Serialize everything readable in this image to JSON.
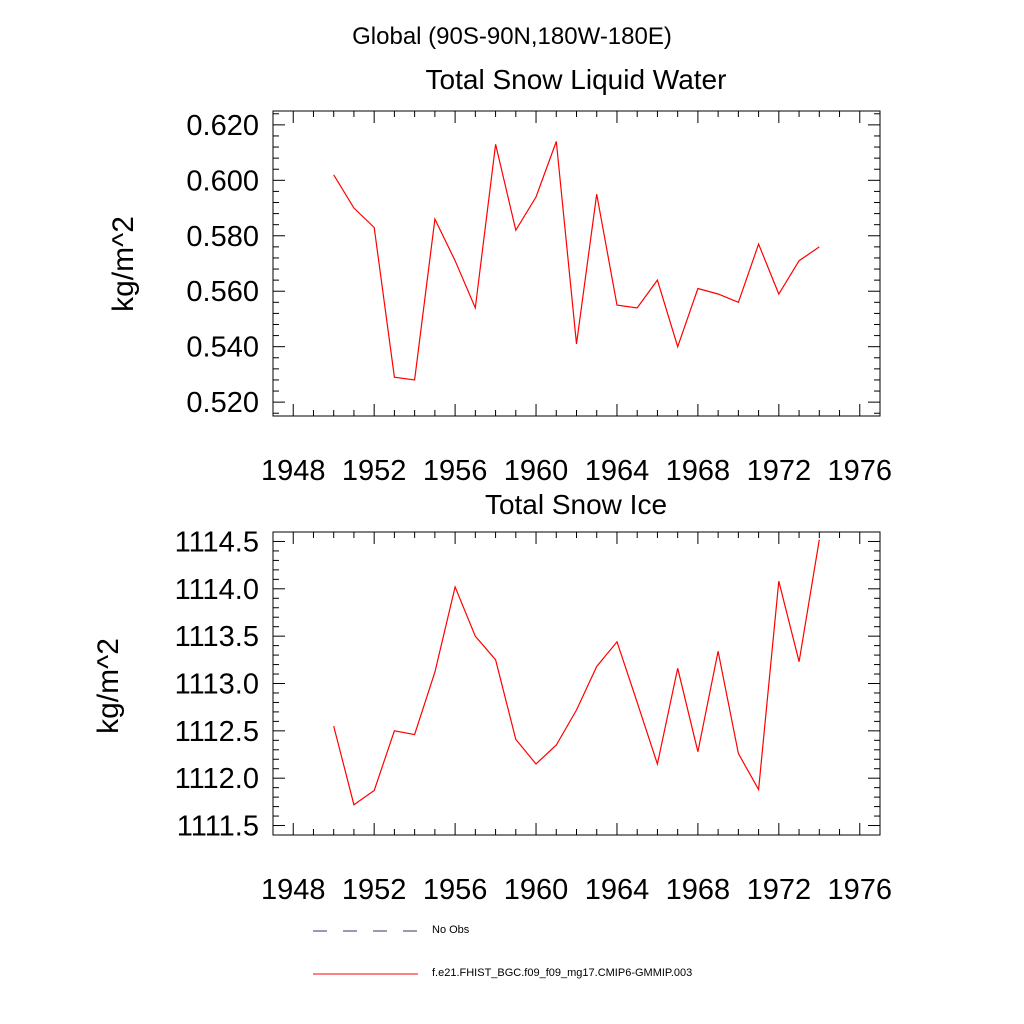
{
  "figure": {
    "supertitle": "Global (90S-90N,180W-180E)"
  },
  "colors": {
    "series": "#ff0000",
    "obs": "#333366",
    "axis": "#000000"
  },
  "legend": {
    "placement": "bottom-center",
    "items": [
      {
        "label": "No Obs",
        "style": "dashed",
        "color": "#333366"
      },
      {
        "label": "f.e21.FHIST_BGC.f09_f09_mg17.CMIP6-GMMIP.003",
        "style": "solid",
        "color": "#ff0000"
      }
    ]
  },
  "chart_data": [
    {
      "type": "line",
      "title": "Total Snow Liquid Water",
      "xlabel": "",
      "ylabel": "kg/m^2",
      "xlim": [
        1947,
        1977
      ],
      "ylim": [
        0.515,
        0.625
      ],
      "grid": false,
      "x_ticks": [
        1948,
        1952,
        1956,
        1960,
        1964,
        1968,
        1972,
        1976
      ],
      "x_tick_labels": [
        "1948",
        "1952",
        "1956",
        "1960",
        "1964",
        "1968",
        "1972",
        "1976"
      ],
      "y_ticks": [
        0.52,
        0.54,
        0.56,
        0.58,
        0.6,
        0.62
      ],
      "y_tick_labels": [
        "0.520",
        "0.540",
        "0.560",
        "0.580",
        "0.600",
        "0.620"
      ],
      "y_minor_step": 0.004,
      "x_minor_step": 1,
      "series": [
        {
          "name": "f.e21.FHIST_BGC.f09_f09_mg17.CMIP6-GMMIP.003",
          "color": "#ff0000",
          "x": [
            1950,
            1951,
            1952,
            1953,
            1954,
            1955,
            1956,
            1957,
            1958,
            1959,
            1960,
            1961,
            1962,
            1963,
            1964,
            1965,
            1966,
            1967,
            1968,
            1969,
            1970,
            1971,
            1972,
            1973,
            1974
          ],
          "y": [
            0.602,
            0.59,
            0.583,
            0.529,
            0.528,
            0.586,
            0.571,
            0.554,
            0.613,
            0.582,
            0.594,
            0.614,
            0.541,
            0.595,
            0.555,
            0.554,
            0.564,
            0.54,
            0.561,
            0.559,
            0.556,
            0.577,
            0.559,
            0.571,
            0.576
          ]
        }
      ]
    },
    {
      "type": "line",
      "title": "Total Snow Ice",
      "xlabel": "",
      "ylabel": "kg/m^2",
      "xlim": [
        1947,
        1977
      ],
      "ylim": [
        1111.4,
        1114.6
      ],
      "grid": false,
      "x_ticks": [
        1948,
        1952,
        1956,
        1960,
        1964,
        1968,
        1972,
        1976
      ],
      "x_tick_labels": [
        "1948",
        "1952",
        "1956",
        "1960",
        "1964",
        "1968",
        "1972",
        "1976"
      ],
      "y_ticks": [
        1111.5,
        1112.0,
        1112.5,
        1113.0,
        1113.5,
        1114.0,
        1114.5
      ],
      "y_tick_labels": [
        "1111.5",
        "1112.0",
        "1112.5",
        "1113.0",
        "1113.5",
        "1114.0",
        "1114.5"
      ],
      "y_minor_step": 0.1,
      "x_minor_step": 1,
      "series": [
        {
          "name": "f.e21.FHIST_BGC.f09_f09_mg17.CMIP6-GMMIP.003",
          "color": "#ff0000",
          "x": [
            1950,
            1951,
            1952,
            1953,
            1954,
            1955,
            1956,
            1957,
            1958,
            1959,
            1960,
            1961,
            1962,
            1963,
            1964,
            1965,
            1966,
            1967,
            1968,
            1969,
            1970,
            1971,
            1972,
            1973,
            1974
          ],
          "y": [
            1112.55,
            1111.72,
            1111.87,
            1112.5,
            1112.46,
            1113.12,
            1114.02,
            1113.5,
            1113.25,
            1112.41,
            1112.15,
            1112.35,
            1112.72,
            1113.18,
            1113.44,
            1112.8,
            1112.15,
            1113.16,
            1112.28,
            1113.34,
            1112.26,
            1111.88,
            1114.08,
            1113.23,
            1114.52
          ]
        }
      ]
    }
  ]
}
